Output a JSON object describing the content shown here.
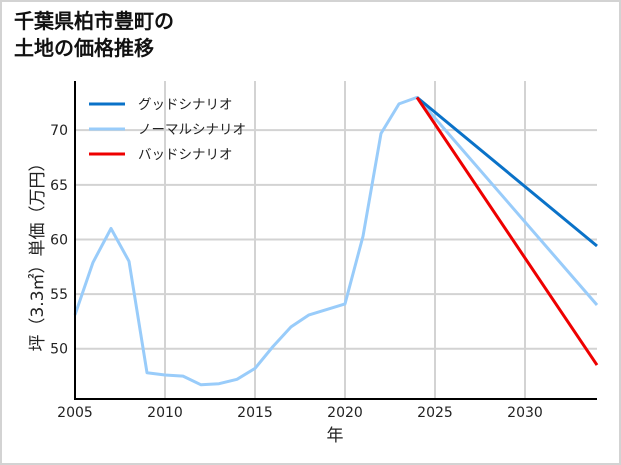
{
  "page": {
    "title_line1": "千葉県柏市豊町の",
    "title_line2": "土地の価格推移"
  },
  "colors": {
    "good": "#0a72c8",
    "normal": "#99ccfa",
    "bad": "#ee0000",
    "grid": "#d3d3d3",
    "axis": "#000000",
    "frame": "#d3d3d3"
  },
  "chart_data": {
    "type": "line",
    "title": "千葉県柏市豊町の土地の価格推移",
    "xlabel": "年",
    "ylabel": "坪（3.3㎡）単価（万円）",
    "xlim": [
      2005,
      2034
    ],
    "ylim": [
      45.4,
      74.5
    ],
    "xticks": [
      2005,
      2010,
      2015,
      2020,
      2025,
      2030
    ],
    "yticks": [
      50,
      55,
      60,
      65,
      70
    ],
    "grid": true,
    "legend_position": "upper left",
    "legend": [
      "グッドシナリオ",
      "ノーマルシナリオ",
      "バッドシナリオ"
    ],
    "series": [
      {
        "name": "グッドシナリオ",
        "color": "#0a72c8",
        "x": [
          2024,
          2034
        ],
        "values": [
          73.0,
          59.4
        ]
      },
      {
        "name": "ノーマルシナリオ",
        "color": "#99ccfa",
        "x": [
          2005,
          2006,
          2007,
          2008,
          2009,
          2010,
          2011,
          2012,
          2013,
          2014,
          2015,
          2016,
          2017,
          2018,
          2019,
          2020,
          2021,
          2022,
          2023,
          2024,
          2034
        ],
        "values": [
          53.1,
          57.9,
          61.0,
          58.0,
          47.8,
          47.6,
          47.5,
          46.7,
          46.8,
          47.2,
          48.2,
          50.2,
          52.0,
          53.1,
          53.6,
          54.1,
          60.3,
          69.7,
          72.4,
          73.0,
          54.0
        ]
      },
      {
        "name": "バッドシナリオ",
        "color": "#ee0000",
        "x": [
          2024,
          2034
        ],
        "values": [
          73.0,
          48.5
        ]
      }
    ]
  }
}
